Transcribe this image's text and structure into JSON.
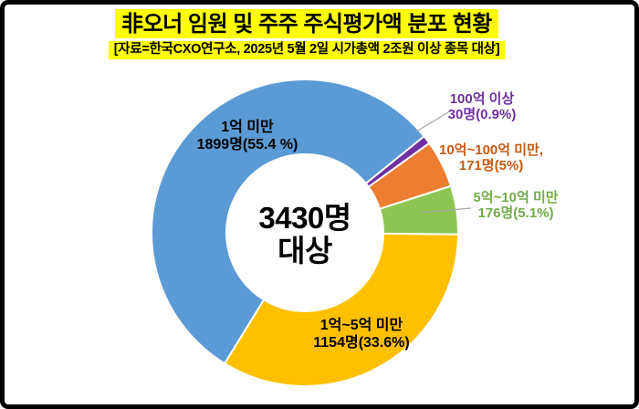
{
  "title": {
    "line1": "非오너 임원 및 주주 주식평가액 분포 현황",
    "line2": "[자료=한국CXO연구소, 2025년 5월 2일 시가총액 2조원 이상 종목 대상]",
    "highlight_color": "#ffff00"
  },
  "center_label": {
    "line1": "3430명",
    "line2": "대상"
  },
  "chart_data": {
    "type": "pie",
    "subtype": "donut",
    "title": "非오너 임원 및 주주 주식평가액 분포 현황",
    "source_note": "[자료=한국CXO연구소, 2025년 5월 2일 시가총액 2조원 이상 종목 대상]",
    "center_text": "3430명 대상",
    "total_people": 3430,
    "start_angle_deg": 51,
    "direction": "clockwise",
    "legend_position": "none",
    "slices": [
      {
        "category": "100억 이상",
        "people": 30,
        "percent": 0.9,
        "color": "#7030a0",
        "label_line1": "100억 이상",
        "label_line2": "30명(0.9%)",
        "label_color": "#7030a0"
      },
      {
        "category": "10억~100억 미만",
        "people": 171,
        "percent": 5,
        "color": "#ed7d31",
        "label_line1": "10억~100억 미만,",
        "label_line2": "171명(5%)",
        "label_color": "#c55a11"
      },
      {
        "category": "5억~10억 미만",
        "people": 176,
        "percent": 5.1,
        "color": "#8dc653",
        "label_line1": "5억~10억 미만",
        "label_line2": "176명(5.1%)",
        "label_color": "#70ad47"
      },
      {
        "category": "1억~5억 미만",
        "people": 1154,
        "percent": 33.6,
        "color": "#ffc000",
        "label_line1": "1억~5억 미만",
        "label_line2": "1154명(33.6%)",
        "label_color": "#000000"
      },
      {
        "category": "1억 미만",
        "people": 1899,
        "percent": 55.4,
        "color": "#5b9bd5",
        "label_line1": "1억 미만",
        "label_line2": "1899명(55.4 %)",
        "label_color": "#000000"
      }
    ],
    "leader_line_color": "#a6a6a6"
  }
}
